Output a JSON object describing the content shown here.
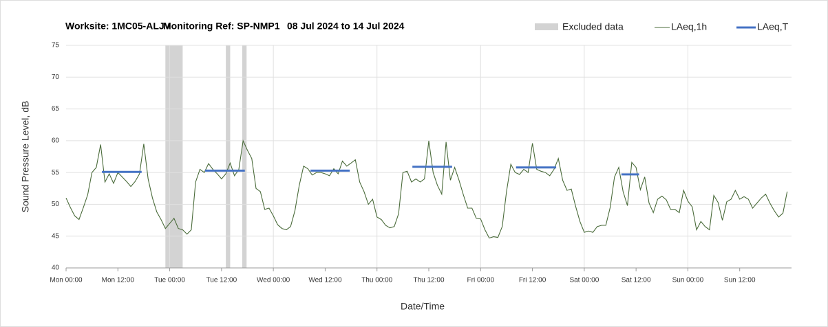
{
  "chart_data": {
    "type": "line",
    "title": "Worksite: 1MC05-ALJV",
    "subtitle": "Monitoring Ref: SP-NMP1",
    "date_range": "08 Jul 2024 to 14 Jul 2024",
    "xlabel": "Date/Time",
    "ylabel": "Sound Pressure Level, dB",
    "xlim": [
      0,
      168
    ],
    "ylim": [
      40,
      75
    ],
    "yticks": [
      40,
      45,
      50,
      55,
      60,
      65,
      70,
      75
    ],
    "xticks": [
      {
        "value": 0,
        "label": "Mon 00:00"
      },
      {
        "value": 12,
        "label": "Mon 12:00"
      },
      {
        "value": 24,
        "label": "Tue 00:00"
      },
      {
        "value": 36,
        "label": "Tue 12:00"
      },
      {
        "value": 48,
        "label": "Wed 00:00"
      },
      {
        "value": 60,
        "label": "Wed 12:00"
      },
      {
        "value": 72,
        "label": "Thu 00:00"
      },
      {
        "value": 84,
        "label": "Thu 12:00"
      },
      {
        "value": 96,
        "label": "Fri 00:00"
      },
      {
        "value": 108,
        "label": "Fri 12:00"
      },
      {
        "value": 120,
        "label": "Sat 00:00"
      },
      {
        "value": 132,
        "label": "Sat 12:00"
      },
      {
        "value": 144,
        "label": "Sun 00:00"
      },
      {
        "value": 156,
        "label": "Sun 12:00"
      }
    ],
    "grid": true,
    "excluded": {
      "name": "Excluded data",
      "color": "#d3d3d3",
      "ranges": [
        [
          23,
          27
        ],
        [
          37,
          38
        ],
        [
          40.8,
          41.8
        ]
      ]
    },
    "x": [
      0,
      1,
      2,
      3,
      4,
      5,
      6,
      7,
      8,
      9,
      10,
      11,
      12,
      13,
      14,
      15,
      16,
      17,
      18,
      19,
      20,
      21,
      22,
      23,
      24,
      25,
      26,
      27,
      28,
      29,
      30,
      31,
      32,
      33,
      34,
      35,
      36,
      37,
      38,
      39,
      40,
      41,
      42,
      43,
      44,
      45,
      46,
      47,
      48,
      49,
      50,
      51,
      52,
      53,
      54,
      55,
      56,
      57,
      58,
      59,
      60,
      61,
      62,
      63,
      64,
      65,
      66,
      67,
      68,
      69,
      70,
      71,
      72,
      73,
      74,
      75,
      76,
      77,
      78,
      79,
      80,
      81,
      82,
      83,
      84,
      85,
      86,
      87,
      88,
      89,
      90,
      91,
      92,
      93,
      94,
      95,
      96,
      97,
      98,
      99,
      100,
      101,
      102,
      103,
      104,
      105,
      106,
      107,
      108,
      109,
      110,
      111,
      112,
      113,
      114,
      115,
      116,
      117,
      118,
      119,
      120,
      121,
      122,
      123,
      124,
      125,
      126,
      127,
      128,
      129,
      130,
      131,
      132,
      133,
      134,
      135,
      136,
      137,
      138,
      139,
      140,
      141,
      142,
      143,
      144,
      145,
      146,
      147,
      148,
      149,
      150,
      151,
      152,
      153,
      154,
      155,
      156,
      157,
      158,
      159,
      160,
      161,
      162,
      163,
      164,
      165,
      166,
      167
    ],
    "series": [
      {
        "name": "LAeq,1h",
        "color": "#4a6b3a",
        "values": [
          51,
          49.5,
          48.2,
          47.6,
          49.5,
          51.5,
          55,
          55.8,
          59.4,
          53.5,
          54.8,
          53.3,
          55,
          54.3,
          53.6,
          52.8,
          53.6,
          54.8,
          59.5,
          54,
          51,
          48.8,
          47.6,
          46.2,
          47,
          47.8,
          46.2,
          46,
          45.3,
          46,
          53.5,
          55.5,
          55,
          56.4,
          55.5,
          54.8,
          54,
          54.8,
          56.5,
          54.5,
          55.5,
          60,
          58.5,
          57.2,
          52.5,
          52,
          49.2,
          49.4,
          48.2,
          46.8,
          46.2,
          46,
          46.5,
          49,
          53,
          56,
          55.6,
          54.6,
          55,
          55,
          54.8,
          54.5,
          55.6,
          54.8,
          56.8,
          56,
          56.5,
          57,
          53.5,
          52,
          50,
          50.8,
          48,
          47.6,
          46.7,
          46.3,
          46.5,
          48.5,
          55,
          55.2,
          53.5,
          54,
          53.5,
          54,
          60,
          55,
          53,
          51.6,
          59.8,
          53.8,
          55.8,
          53.8,
          51.5,
          49.4,
          49.4,
          47.8,
          47.7,
          46,
          44.7,
          44.9,
          44.8,
          46.5,
          52,
          56.3,
          55,
          54.7,
          55.5,
          55,
          59.6,
          55.5,
          55.2,
          55,
          54.5,
          55.5,
          57.2,
          53.8,
          52.2,
          52.4,
          49.7,
          47.3,
          45.6,
          45.8,
          45.6,
          46.5,
          46.7,
          46.7,
          49.5,
          54.3,
          55.8,
          52,
          49.8,
          56.6,
          55.8,
          52.3,
          54.3,
          50.2,
          48.7,
          50.8,
          51.3,
          50.7,
          49.2,
          49.2,
          48.7,
          52.2,
          50.5,
          49.6,
          46,
          47.3,
          46.5,
          46,
          51.4,
          50.3,
          47.5,
          50.4,
          50.8,
          52.2,
          50.8,
          51.2,
          50.8,
          49.4,
          50.2,
          51,
          51.6,
          50.2,
          49,
          48,
          48.6,
          52
        ]
      },
      {
        "name": "LAeq,T",
        "color": "#4472c4",
        "segments": [
          {
            "x": [
              8.3,
              17.5
            ],
            "value": 55.1
          },
          {
            "x": [
              32.2,
              41.4
            ],
            "value": 55.3
          },
          {
            "x": [
              56.6,
              65.7
            ],
            "value": 55.3
          },
          {
            "x": [
              80.2,
              89.4
            ],
            "value": 55.9
          },
          {
            "x": [
              104.2,
              113.5
            ],
            "value": 55.8
          },
          {
            "x": [
              128.6,
              132.7
            ],
            "value": 54.7
          }
        ]
      }
    ]
  }
}
